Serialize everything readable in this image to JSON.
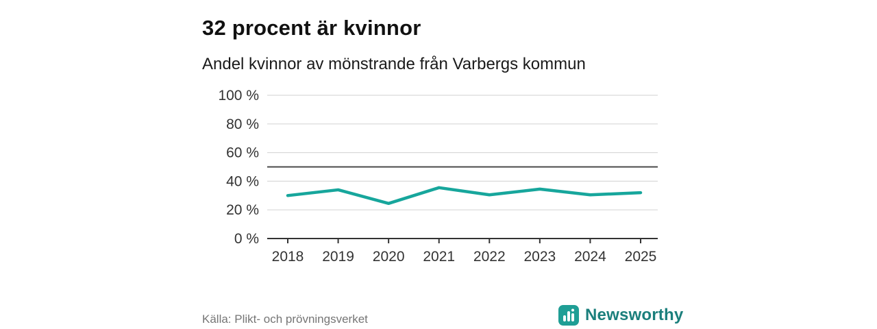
{
  "title": "32 procent är kvinnor",
  "subtitle": "Andel kvinnor av mönstrande från Varbergs kommun",
  "source": "Källa: Plikt- och prövningsverket",
  "brand": {
    "name": "Newsworthy",
    "icon": "bar-chart-logo",
    "icon_color": "#1f9e95",
    "text_color": "#1b7f7c"
  },
  "chart_data": {
    "type": "line",
    "title": "32 procent är kvinnor",
    "subtitle": "Andel kvinnor av mönstrande från Varbergs kommun",
    "x": [
      2018,
      2019,
      2020,
      2021,
      2022,
      2023,
      2024,
      2025
    ],
    "series": [
      {
        "name": "Andel kvinnor av mönstrande",
        "values": [
          30,
          34,
          24.5,
          35.5,
          30.5,
          34.5,
          30.5,
          32
        ]
      }
    ],
    "reference_line": {
      "value": 50,
      "color": "#4a4a4a"
    },
    "ylim": [
      0,
      100
    ],
    "yticks": [
      0,
      20,
      40,
      60,
      80,
      100
    ],
    "ytick_format": "{v} %",
    "xlabel": "",
    "ylabel": "",
    "grid": true,
    "legend": "none",
    "line_color": "#17a69c",
    "grid_color": "#d9d9d9",
    "axis_color": "#333333",
    "tick_label_color": "#333333"
  }
}
